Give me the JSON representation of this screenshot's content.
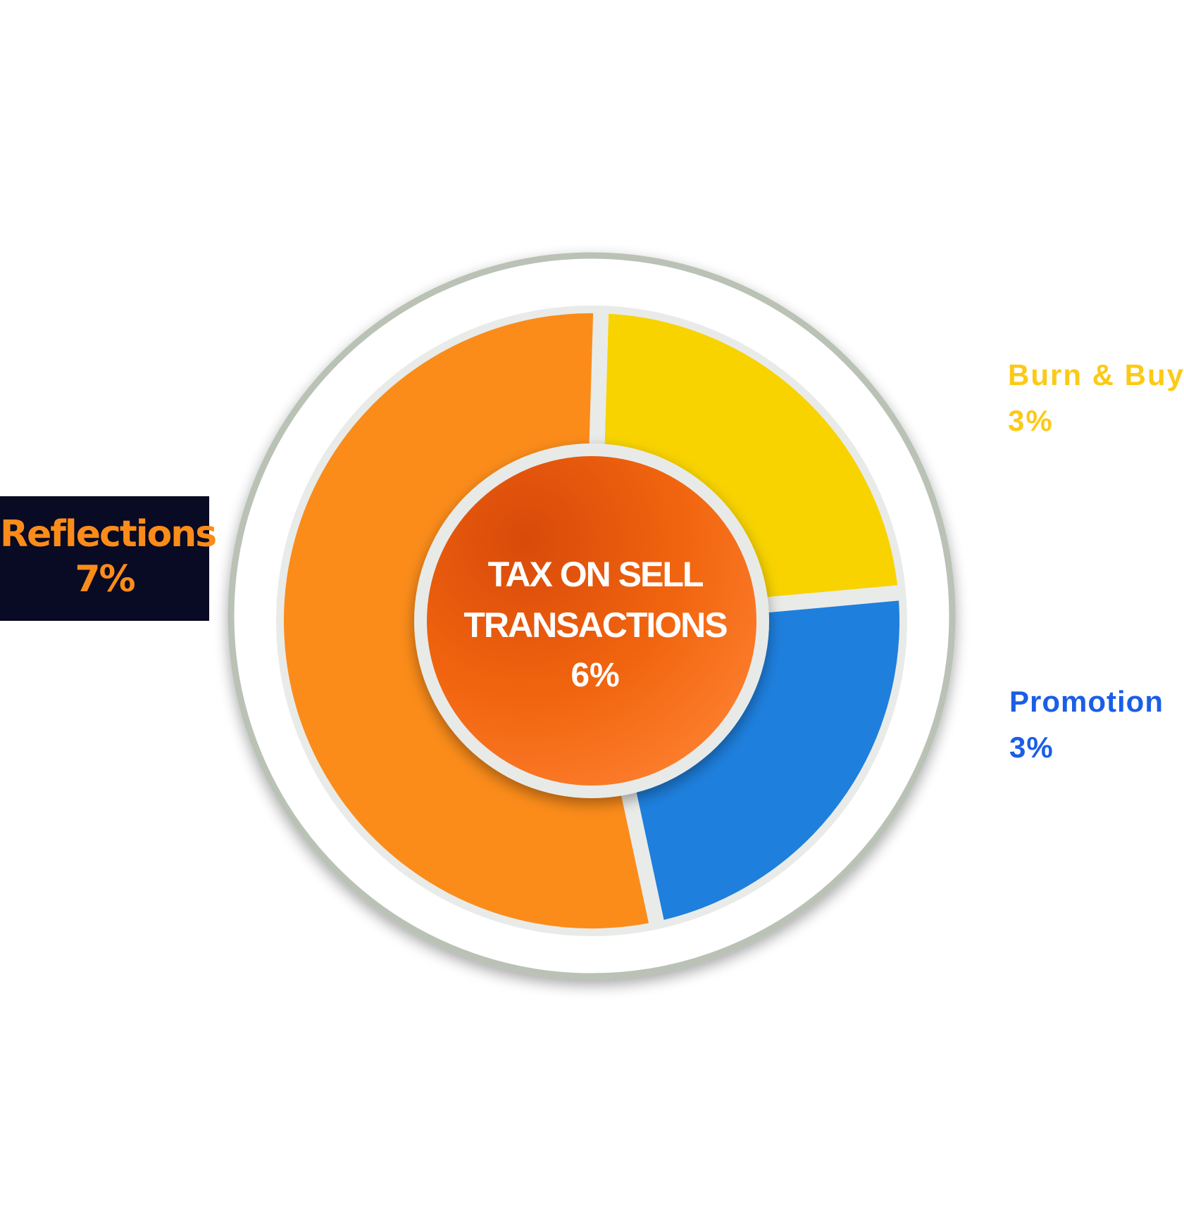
{
  "chart_data": {
    "type": "pie",
    "title": "",
    "center_label": {
      "line1": "TAX ON SELL",
      "line2": "TRANSACTIONS",
      "value": "6%"
    },
    "slices": [
      {
        "name": "Burn & Buy",
        "label": "3%",
        "value": 3,
        "color": "#f8d300"
      },
      {
        "name": "Promotion",
        "label": "3%",
        "value": 3,
        "color": "#1e7fdd"
      },
      {
        "name": "Reflections",
        "label": "7%",
        "value": 7,
        "color": "#fb8c1a"
      }
    ],
    "label_colors": {
      "Burn & Buy": "#fbca16",
      "Promotion": "#1b5ee6",
      "Reflections": "#fb8c1a"
    },
    "center_color": "#f36c12",
    "legend": "outside-labels"
  }
}
